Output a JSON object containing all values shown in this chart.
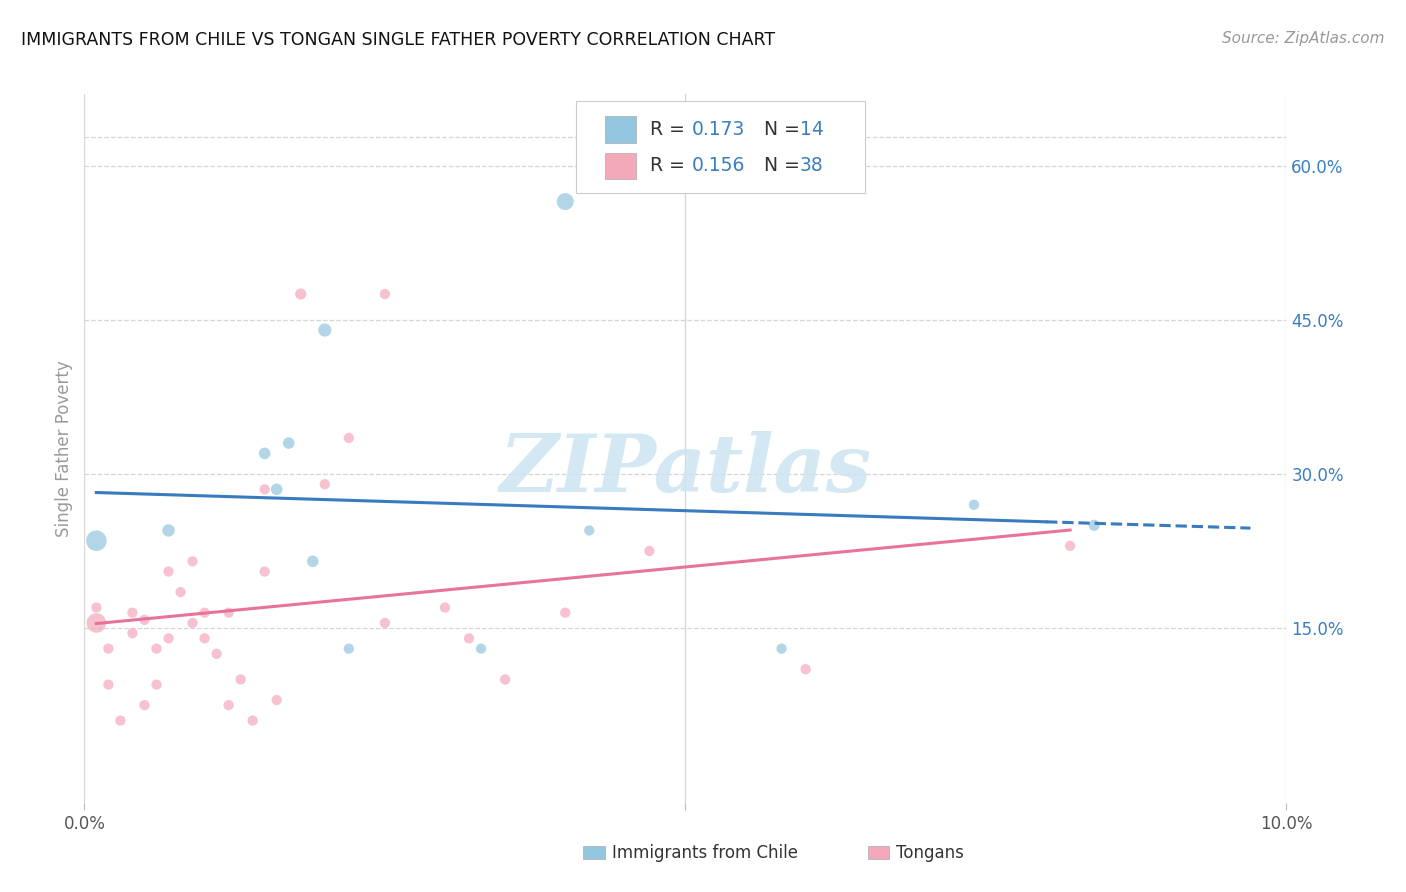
{
  "title": "IMMIGRANTS FROM CHILE VS TONGAN SINGLE FATHER POVERTY CORRELATION CHART",
  "source": "Source: ZipAtlas.com",
  "ylabel": "Single Father Poverty",
  "legend_label1": "Immigrants from Chile",
  "legend_label2": "Tongans",
  "R1": 0.173,
  "N1": 14,
  "R2": 0.156,
  "N2": 38,
  "color_blue": "#92c5de",
  "color_pink": "#f4a9bb",
  "color_blue_line": "#3a7abf",
  "color_pink_line": "#e8739a",
  "color_blue_text": "#3a7ebf",
  "color_black_text": "#333333",
  "ytick_labels": [
    "15.0%",
    "30.0%",
    "45.0%",
    "60.0%"
  ],
  "ytick_values": [
    0.15,
    0.3,
    0.45,
    0.6
  ],
  "xlim": [
    0.0,
    0.1
  ],
  "ylim": [
    -0.02,
    0.67
  ],
  "blue_points_x": [
    0.001,
    0.007,
    0.015,
    0.016,
    0.017,
    0.019,
    0.02,
    0.022,
    0.033,
    0.04,
    0.042,
    0.058,
    0.074,
    0.084
  ],
  "blue_points_y": [
    0.235,
    0.245,
    0.32,
    0.285,
    0.33,
    0.215,
    0.44,
    0.13,
    0.13,
    0.565,
    0.245,
    0.13,
    0.27,
    0.25
  ],
  "blue_sizes": [
    220,
    80,
    70,
    70,
    70,
    70,
    90,
    55,
    55,
    150,
    55,
    55,
    55,
    65
  ],
  "pink_points_x": [
    0.001,
    0.001,
    0.002,
    0.002,
    0.003,
    0.004,
    0.004,
    0.005,
    0.005,
    0.006,
    0.006,
    0.007,
    0.007,
    0.008,
    0.009,
    0.009,
    0.01,
    0.01,
    0.011,
    0.012,
    0.012,
    0.013,
    0.014,
    0.015,
    0.015,
    0.016,
    0.018,
    0.02,
    0.022,
    0.025,
    0.025,
    0.03,
    0.032,
    0.035,
    0.04,
    0.047,
    0.06,
    0.082
  ],
  "pink_points_y": [
    0.155,
    0.17,
    0.095,
    0.13,
    0.06,
    0.145,
    0.165,
    0.075,
    0.158,
    0.095,
    0.13,
    0.14,
    0.205,
    0.185,
    0.155,
    0.215,
    0.14,
    0.165,
    0.125,
    0.075,
    0.165,
    0.1,
    0.06,
    0.205,
    0.285,
    0.08,
    0.475,
    0.29,
    0.335,
    0.155,
    0.475,
    0.17,
    0.14,
    0.1,
    0.165,
    0.225,
    0.11,
    0.23
  ],
  "pink_sizes": [
    200,
    55,
    55,
    55,
    55,
    55,
    55,
    55,
    55,
    55,
    55,
    55,
    55,
    55,
    55,
    55,
    55,
    55,
    55,
    55,
    55,
    55,
    55,
    55,
    55,
    55,
    65,
    55,
    55,
    55,
    55,
    55,
    55,
    55,
    55,
    55,
    55,
    55
  ],
  "watermark_text": "ZIPatlas",
  "background_color": "#ffffff",
  "grid_color": "#d5d5d5"
}
